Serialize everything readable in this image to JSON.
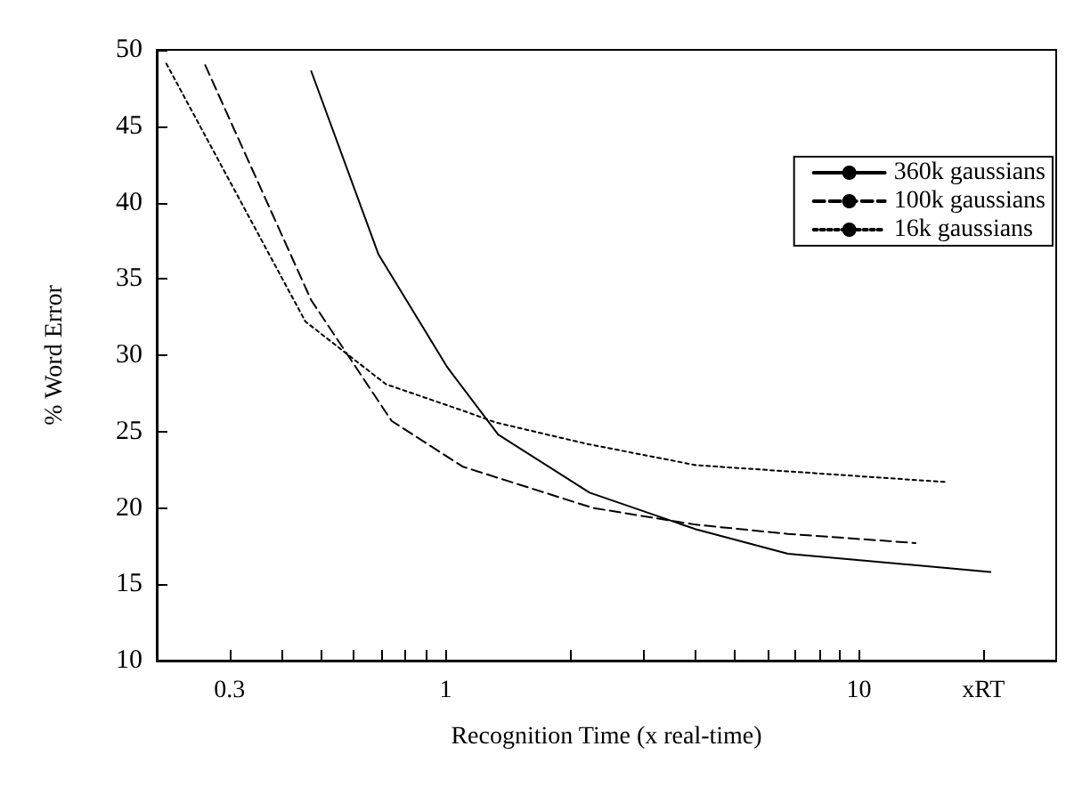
{
  "chart_data": {
    "type": "line",
    "xlabel": "Recognition Time (x real-time)",
    "ylabel": "% Word Error",
    "log": "x",
    "xlim": [
      0.2,
      30
    ],
    "xticks": [
      0.3,
      {
        "value": 0.4,
        "label": null
      },
      {
        "value": 0.5,
        "label": null
      },
      {
        "value": 0.6,
        "label": null
      },
      {
        "value": 0.7,
        "label": null
      },
      {
        "value": 0.8,
        "label": null
      },
      {
        "value": 0.9,
        "label": null
      },
      1,
      {
        "value": 2,
        "label": null
      },
      {
        "value": 3,
        "label": null
      },
      {
        "value": 4,
        "label": null
      },
      {
        "value": 5,
        "label": null
      },
      {
        "value": 6,
        "label": null
      },
      {
        "value": 7,
        "label": null
      },
      {
        "value": 8,
        "label": null
      },
      {
        "value": 9,
        "label": null
      },
      10,
      {
        "value": 20,
        "label": "xRT"
      }
    ],
    "ylim": [
      10,
      50
    ],
    "yticks": [
      10,
      15,
      20,
      25,
      30,
      35,
      40,
      45,
      50
    ],
    "grid": false,
    "legend": "top right",
    "marker": "none",
    "series": [
      {
        "name": "360k gaussians",
        "color": "#000000",
        "line_style": "solid",
        "x": [
          0.473,
          0.688,
          1.01,
          1.34,
          2.23,
          4.03,
          6.73,
          20.8
        ],
        "values": [
          48.6,
          36.6,
          29.2,
          24.8,
          21.0,
          18.6,
          17.0,
          15.8
        ]
      },
      {
        "name": "100k gaussians",
        "color": "#000000",
        "line_style": "dashed",
        "x": [
          0.262,
          0.473,
          0.74,
          1.1,
          2.27,
          4.03,
          6.73,
          13.7
        ],
        "values": [
          49.0,
          33.6,
          25.7,
          22.7,
          20.0,
          18.9,
          18.3,
          17.7
        ]
      },
      {
        "name": "16k gaussians",
        "color": "#000000",
        "line_style": "dotted",
        "x": [
          0.211,
          0.458,
          0.717,
          1.12,
          1.32,
          2.19,
          4.03,
          16.1
        ],
        "values": [
          49.1,
          32.2,
          28.1,
          26.3,
          25.6,
          24.2,
          22.8,
          21.7
        ]
      }
    ]
  }
}
